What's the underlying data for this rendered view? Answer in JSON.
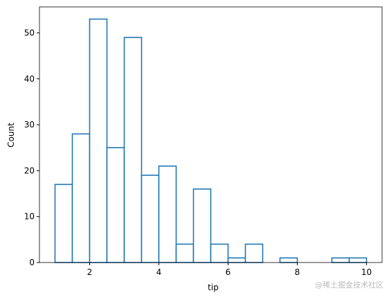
{
  "chart_data": {
    "type": "histogram",
    "xlabel": "tip",
    "ylabel": "Count",
    "bins": [
      1,
      1.5,
      2,
      2.5,
      3,
      3.5,
      4,
      4.5,
      5,
      5.5,
      6,
      6.5,
      7,
      7.5,
      8,
      8.5,
      9,
      9.5,
      10
    ],
    "values": [
      17,
      28,
      53,
      25,
      49,
      19,
      21,
      4,
      16,
      4,
      1,
      4,
      0,
      1,
      0,
      0,
      1,
      1
    ],
    "color": "#1f77b4",
    "xlim": [
      0.55,
      10.45
    ],
    "ylim": [
      0,
      55.65
    ],
    "xticks": [
      2,
      4,
      6,
      8,
      10
    ],
    "yticks": [
      0,
      10,
      20,
      30,
      40,
      50
    ],
    "grid": false
  },
  "watermark": "@稀土掘金技术社区"
}
